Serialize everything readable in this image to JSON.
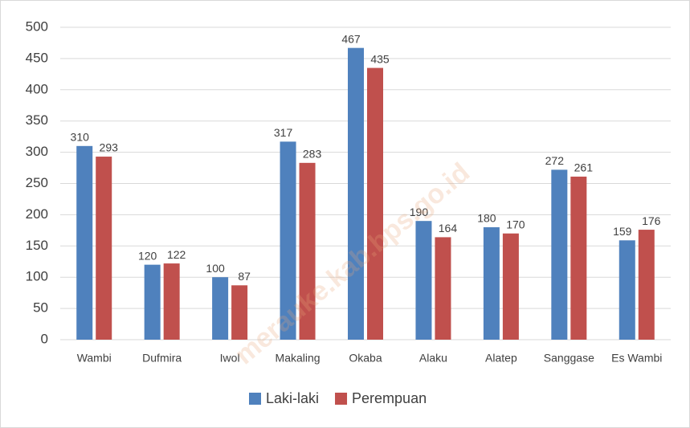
{
  "chart_data": {
    "type": "bar",
    "categories": [
      "Wambi",
      "Dufmira",
      "Iwol",
      "Makaling",
      "Okaba",
      "Alaku",
      "Alatep",
      "Sanggase",
      "Es Wambi"
    ],
    "series": [
      {
        "name": "Laki-laki",
        "color": "#4f81bd",
        "values": [
          310,
          120,
          100,
          317,
          467,
          190,
          180,
          272,
          159
        ]
      },
      {
        "name": "Perempuan",
        "color": "#c0504d",
        "values": [
          293,
          122,
          87,
          283,
          435,
          164,
          170,
          261,
          176
        ]
      }
    ],
    "ylim": [
      0,
      500
    ],
    "yticks": [
      0,
      50,
      100,
      150,
      200,
      250,
      300,
      350,
      400,
      450,
      500
    ],
    "grid": true,
    "legend": "bottom",
    "watermark": "merauke.kab.bps.go.id"
  }
}
